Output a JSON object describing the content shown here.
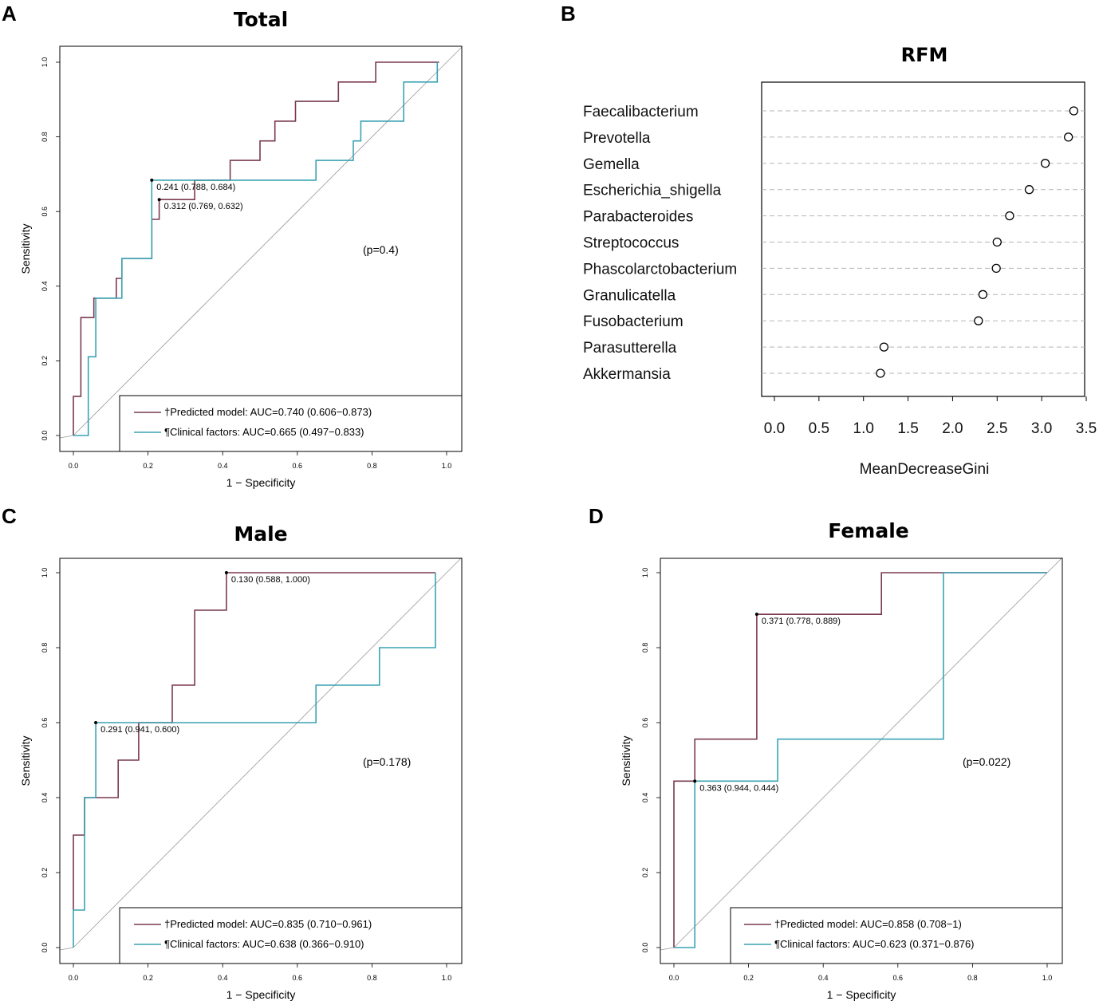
{
  "colors": {
    "predicted": "#7a3a52",
    "clinical": "#3aa3b3",
    "diagonal": "#9a9a9a"
  },
  "panels": {
    "A": {
      "letter": "A",
      "title": "Total"
    },
    "B": {
      "letter": "B",
      "title": "RFM"
    },
    "C": {
      "letter": "C",
      "title": "Male"
    },
    "D": {
      "letter": "D",
      "title": "Female"
    }
  },
  "chart_data": [
    {
      "panel": "A",
      "type": "line",
      "title": "Total",
      "xlabel": "1 − Specificity",
      "ylabel": "Sensitivity",
      "xlim": [
        0,
        1
      ],
      "ylim": [
        0,
        1
      ],
      "ticks": [
        "0.0",
        "0.2",
        "0.4",
        "0.6",
        "0.8",
        "1.0"
      ],
      "p_value": "(p=0.4)",
      "series": [
        {
          "name": "Predicted model",
          "legend": "†Predicted model: AUC=0.740 (0.606−0.873)",
          "x": [
            0,
            0,
            0.02,
            0.02,
            0.055,
            0.055,
            0.115,
            0.115,
            0.13,
            0.13,
            0.21,
            0.21,
            0.23,
            0.23,
            0.325,
            0.325,
            0.42,
            0.42,
            0.5,
            0.5,
            0.54,
            0.54,
            0.595,
            0.595,
            0.71,
            0.71,
            0.81,
            0.81,
            0.98,
            0.98
          ],
          "y": [
            0,
            0.105,
            0.105,
            0.316,
            0.316,
            0.368,
            0.368,
            0.421,
            0.421,
            0.474,
            0.474,
            0.579,
            0.579,
            0.632,
            0.632,
            0.684,
            0.684,
            0.737,
            0.737,
            0.789,
            0.789,
            0.842,
            0.842,
            0.895,
            0.895,
            0.947,
            0.947,
            1,
            1,
            1
          ]
        },
        {
          "name": "Clinical factors",
          "legend": "¶Clinical factors: AUC=0.665 (0.497−0.833)",
          "x": [
            0,
            0.04,
            0.04,
            0.06,
            0.06,
            0.13,
            0.13,
            0.21,
            0.21,
            0.65,
            0.65,
            0.75,
            0.75,
            0.77,
            0.77,
            0.885,
            0.885,
            0.975,
            0.975
          ],
          "y": [
            0,
            0,
            0.211,
            0.211,
            0.368,
            0.368,
            0.474,
            0.474,
            0.684,
            0.684,
            0.737,
            0.737,
            0.789,
            0.789,
            0.842,
            0.842,
            0.947,
            0.947,
            1
          ]
        }
      ],
      "annotations": [
        {
          "text": "0.241 (0.788, 0.684)",
          "x": 0.21,
          "y": 0.684
        },
        {
          "text": "0.312 (0.769, 0.632)",
          "x": 0.23,
          "y": 0.632
        }
      ]
    },
    {
      "panel": "B",
      "type": "scatter",
      "title": "RFM",
      "xlabel": "MeanDecreaseGini",
      "xlim": [
        -0.15,
        3.5
      ],
      "xticks": [
        "0.0",
        "0.5",
        "1.0",
        "1.5",
        "2.0",
        "2.5",
        "3.0",
        "3.5"
      ],
      "categories": [
        "Faecalibacterium",
        "Prevotella",
        "Gemella",
        "Escherichia_shigella",
        "Parabacteroides",
        "Streptococcus",
        "Phascolarctobacterium",
        "Granulicatella",
        "Fusobacterium",
        "Parasutterella",
        "Akkermansia"
      ],
      "values": [
        3.36,
        3.3,
        3.04,
        2.86,
        2.64,
        2.5,
        2.49,
        2.34,
        2.29,
        1.23,
        1.19
      ]
    },
    {
      "panel": "C",
      "type": "line",
      "title": "Male",
      "xlabel": "1 − Specificity",
      "ylabel": "Sensitivity",
      "xlim": [
        0,
        1
      ],
      "ylim": [
        0,
        1
      ],
      "ticks": [
        "0.0",
        "0.2",
        "0.4",
        "0.6",
        "0.8",
        "1.0"
      ],
      "p_value": "(p=0.178)",
      "series": [
        {
          "name": "Predicted model",
          "legend": "†Predicted model: AUC=0.835 (0.710−0.961)",
          "x": [
            0,
            0,
            0.03,
            0.03,
            0.12,
            0.12,
            0.175,
            0.175,
            0.265,
            0.265,
            0.325,
            0.325,
            0.41,
            0.41,
            0.97,
            0.97
          ],
          "y": [
            0.1,
            0.3,
            0.3,
            0.4,
            0.4,
            0.5,
            0.5,
            0.6,
            0.6,
            0.7,
            0.7,
            0.9,
            0.9,
            1,
            1,
            1
          ]
        },
        {
          "name": "Clinical factors",
          "legend": "¶Clinical factors: AUC=0.638 (0.366−0.910)",
          "x": [
            0,
            0,
            0.03,
            0.03,
            0.06,
            0.06,
            0.65,
            0.65,
            0.82,
            0.82,
            0.97,
            0.97
          ],
          "y": [
            0,
            0.1,
            0.1,
            0.4,
            0.4,
            0.6,
            0.6,
            0.7,
            0.7,
            0.8,
            0.8,
            1
          ]
        }
      ],
      "annotations": [
        {
          "text": "0.130 (0.588, 1.000)",
          "x": 0.41,
          "y": 1.0
        },
        {
          "text": "0.291 (0.941, 0.600)",
          "x": 0.06,
          "y": 0.6
        }
      ]
    },
    {
      "panel": "D",
      "type": "line",
      "title": "Female",
      "xlabel": "1 − Specificity",
      "ylabel": "Sensitivity",
      "xlim": [
        0,
        1
      ],
      "ylim": [
        0,
        1
      ],
      "ticks": [
        "0.0",
        "0.2",
        "0.4",
        "0.6",
        "0.8",
        "1.0"
      ],
      "p_value": "(p=0.022)",
      "series": [
        {
          "name": "Predicted model",
          "legend": "†Predicted model: AUC=0.858 (0.708−1)",
          "x": [
            0,
            0,
            0.056,
            0.056,
            0.222,
            0.222,
            0.556,
            0.556,
            1.0
          ],
          "y": [
            0,
            0.444,
            0.444,
            0.556,
            0.556,
            0.889,
            0.889,
            1,
            1
          ]
        },
        {
          "name": "Clinical factors",
          "legend": "¶Clinical factors: AUC=0.623 (0.371−0.876)",
          "x": [
            0,
            0.056,
            0.056,
            0.278,
            0.278,
            0.722,
            0.722,
            1.0
          ],
          "y": [
            0,
            0,
            0.444,
            0.444,
            0.556,
            0.556,
            1,
            1
          ]
        }
      ],
      "annotations": [
        {
          "text": "0.371 (0.778, 0.889)",
          "x": 0.222,
          "y": 0.889
        },
        {
          "text": "0.363 (0.944, 0.444)",
          "x": 0.056,
          "y": 0.444
        }
      ]
    }
  ]
}
